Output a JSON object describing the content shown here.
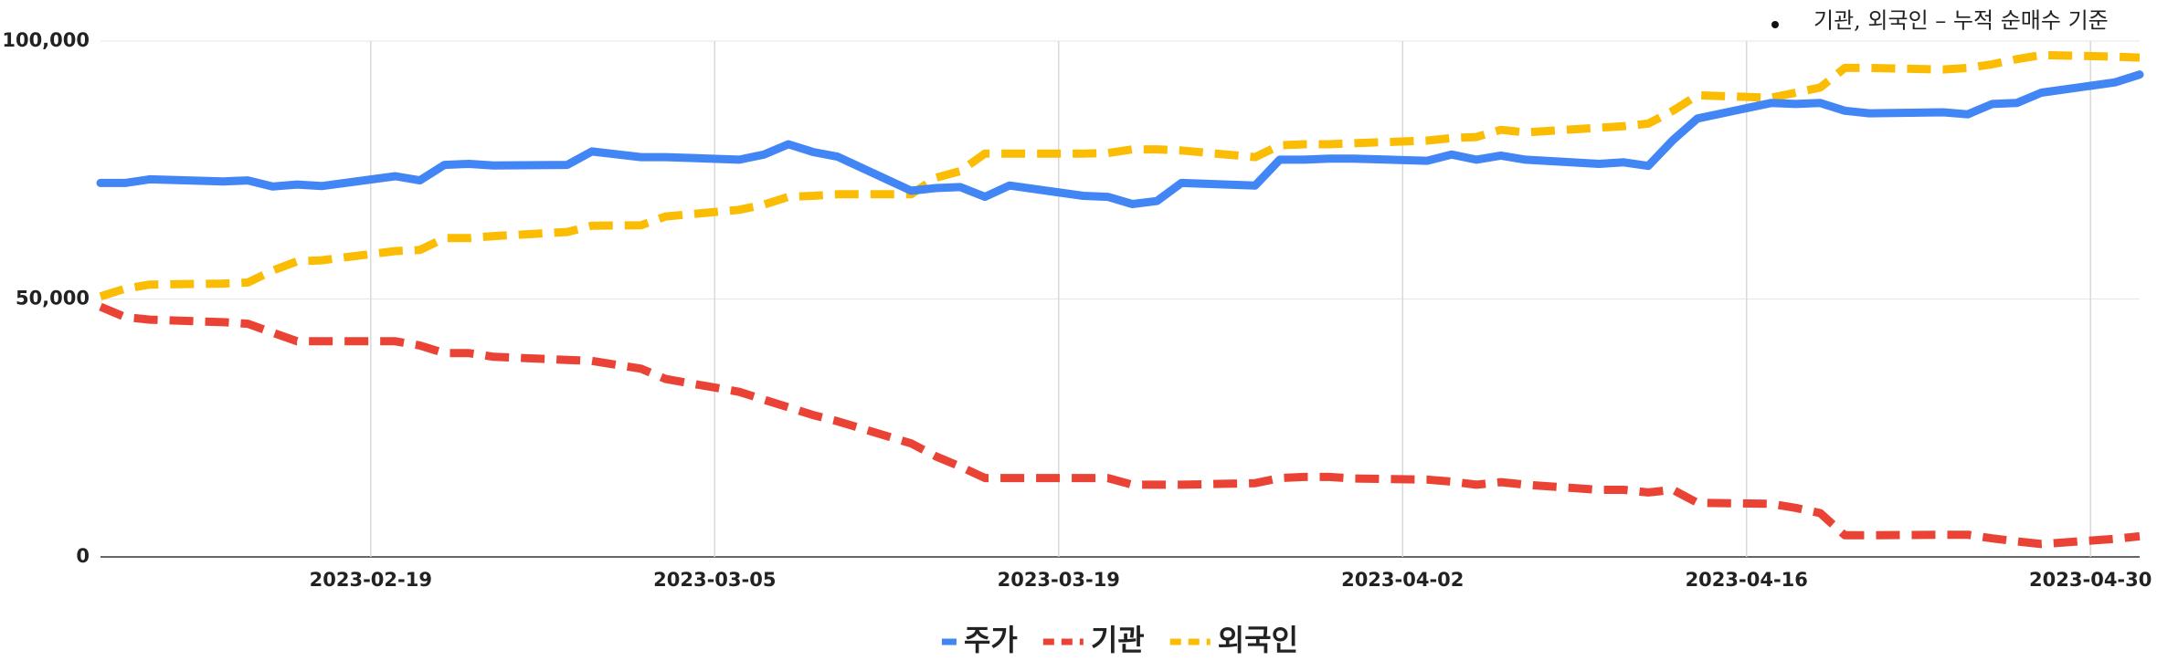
{
  "chart_data": {
    "type": "line",
    "annotation": "기관, 외국인 – 누적 순매수 기준",
    "x": [
      "2023-02-08",
      "2023-02-09",
      "2023-02-10",
      "2023-02-13",
      "2023-02-14",
      "2023-02-15",
      "2023-02-16",
      "2023-02-17",
      "2023-02-20",
      "2023-02-21",
      "2023-02-22",
      "2023-02-23",
      "2023-02-24",
      "2023-02-27",
      "2023-02-28",
      "2023-03-02",
      "2023-03-03",
      "2023-03-06",
      "2023-03-07",
      "2023-03-08",
      "2023-03-09",
      "2023-03-10",
      "2023-03-13",
      "2023-03-14",
      "2023-03-15",
      "2023-03-16",
      "2023-03-17",
      "2023-03-20",
      "2023-03-21",
      "2023-03-22",
      "2023-03-23",
      "2023-03-24",
      "2023-03-27",
      "2023-03-28",
      "2023-03-29",
      "2023-03-30",
      "2023-03-31",
      "2023-04-03",
      "2023-04-04",
      "2023-04-05",
      "2023-04-06",
      "2023-04-07",
      "2023-04-10",
      "2023-04-11",
      "2023-04-12",
      "2023-04-13",
      "2023-04-14",
      "2023-04-17",
      "2023-04-18",
      "2023-04-19",
      "2023-04-20",
      "2023-04-21",
      "2023-04-24",
      "2023-04-25",
      "2023-04-26",
      "2023-04-27",
      "2023-04-28",
      "2023-05-01",
      "2023-05-02"
    ],
    "series": [
      {
        "name": "주가",
        "color": "#4285f4",
        "dash": false,
        "values": [
          72500,
          72500,
          73200,
          72800,
          73000,
          71800,
          72200,
          71900,
          73800,
          73000,
          76000,
          76200,
          75900,
          76000,
          78600,
          77500,
          77500,
          77000,
          78000,
          80000,
          78500,
          77600,
          71000,
          71500,
          71700,
          69800,
          72000,
          70000,
          69800,
          68400,
          69000,
          72500,
          72000,
          77000,
          77000,
          77200,
          77200,
          76800,
          78000,
          77000,
          77800,
          77000,
          76200,
          76500,
          75800,
          80800,
          85000,
          88000,
          87800,
          88000,
          86500,
          86000,
          86200,
          85800,
          87800,
          88000,
          90000,
          92000,
          93500
        ]
      },
      {
        "name": "기관",
        "color": "#ea4335",
        "dash": true,
        "values": [
          48500,
          46500,
          46000,
          45500,
          45200,
          43500,
          41800,
          41800,
          41800,
          41000,
          39500,
          39500,
          38800,
          38200,
          38000,
          36500,
          34500,
          32000,
          30500,
          29000,
          27500,
          26300,
          22000,
          19500,
          17500,
          15300,
          15300,
          15300,
          15300,
          14000,
          14000,
          14000,
          14300,
          15300,
          15500,
          15500,
          15200,
          15000,
          14600,
          14000,
          14500,
          14000,
          13000,
          13000,
          12500,
          13000,
          10500,
          10300,
          9500,
          8500,
          4200,
          4200,
          4300,
          4300,
          3600,
          3000,
          2500,
          3500,
          4000
        ]
      },
      {
        "name": "외국인",
        "color": "#fbbc04",
        "dash": true,
        "values": [
          50500,
          52000,
          52800,
          53000,
          53200,
          55500,
          57300,
          57500,
          59300,
          59500,
          61800,
          61800,
          62200,
          63000,
          64200,
          64300,
          66000,
          67300,
          68300,
          69800,
          70000,
          70300,
          70300,
          73500,
          74800,
          78200,
          78200,
          78200,
          78300,
          79000,
          79000,
          78800,
          77500,
          79800,
          80000,
          80000,
          80200,
          80700,
          81200,
          81400,
          82800,
          82300,
          83200,
          83500,
          84000,
          86500,
          89500,
          89000,
          90000,
          91000,
          94800,
          94800,
          94500,
          94800,
          95500,
          96500,
          97300,
          97000,
          96800
        ]
      }
    ],
    "xlim": [
      "2023-02-08",
      "2023-05-02"
    ],
    "xticks": [
      "2023-02-19",
      "2023-03-05",
      "2023-03-19",
      "2023-04-02",
      "2023-04-16",
      "2023-04-30"
    ],
    "ylim": [
      0,
      100000
    ],
    "yticks": [
      0,
      {
        "value": 50000,
        "label": "50,000"
      },
      {
        "value": 100000,
        "label": "100,000"
      }
    ],
    "grid": true,
    "legend": "bottom"
  }
}
